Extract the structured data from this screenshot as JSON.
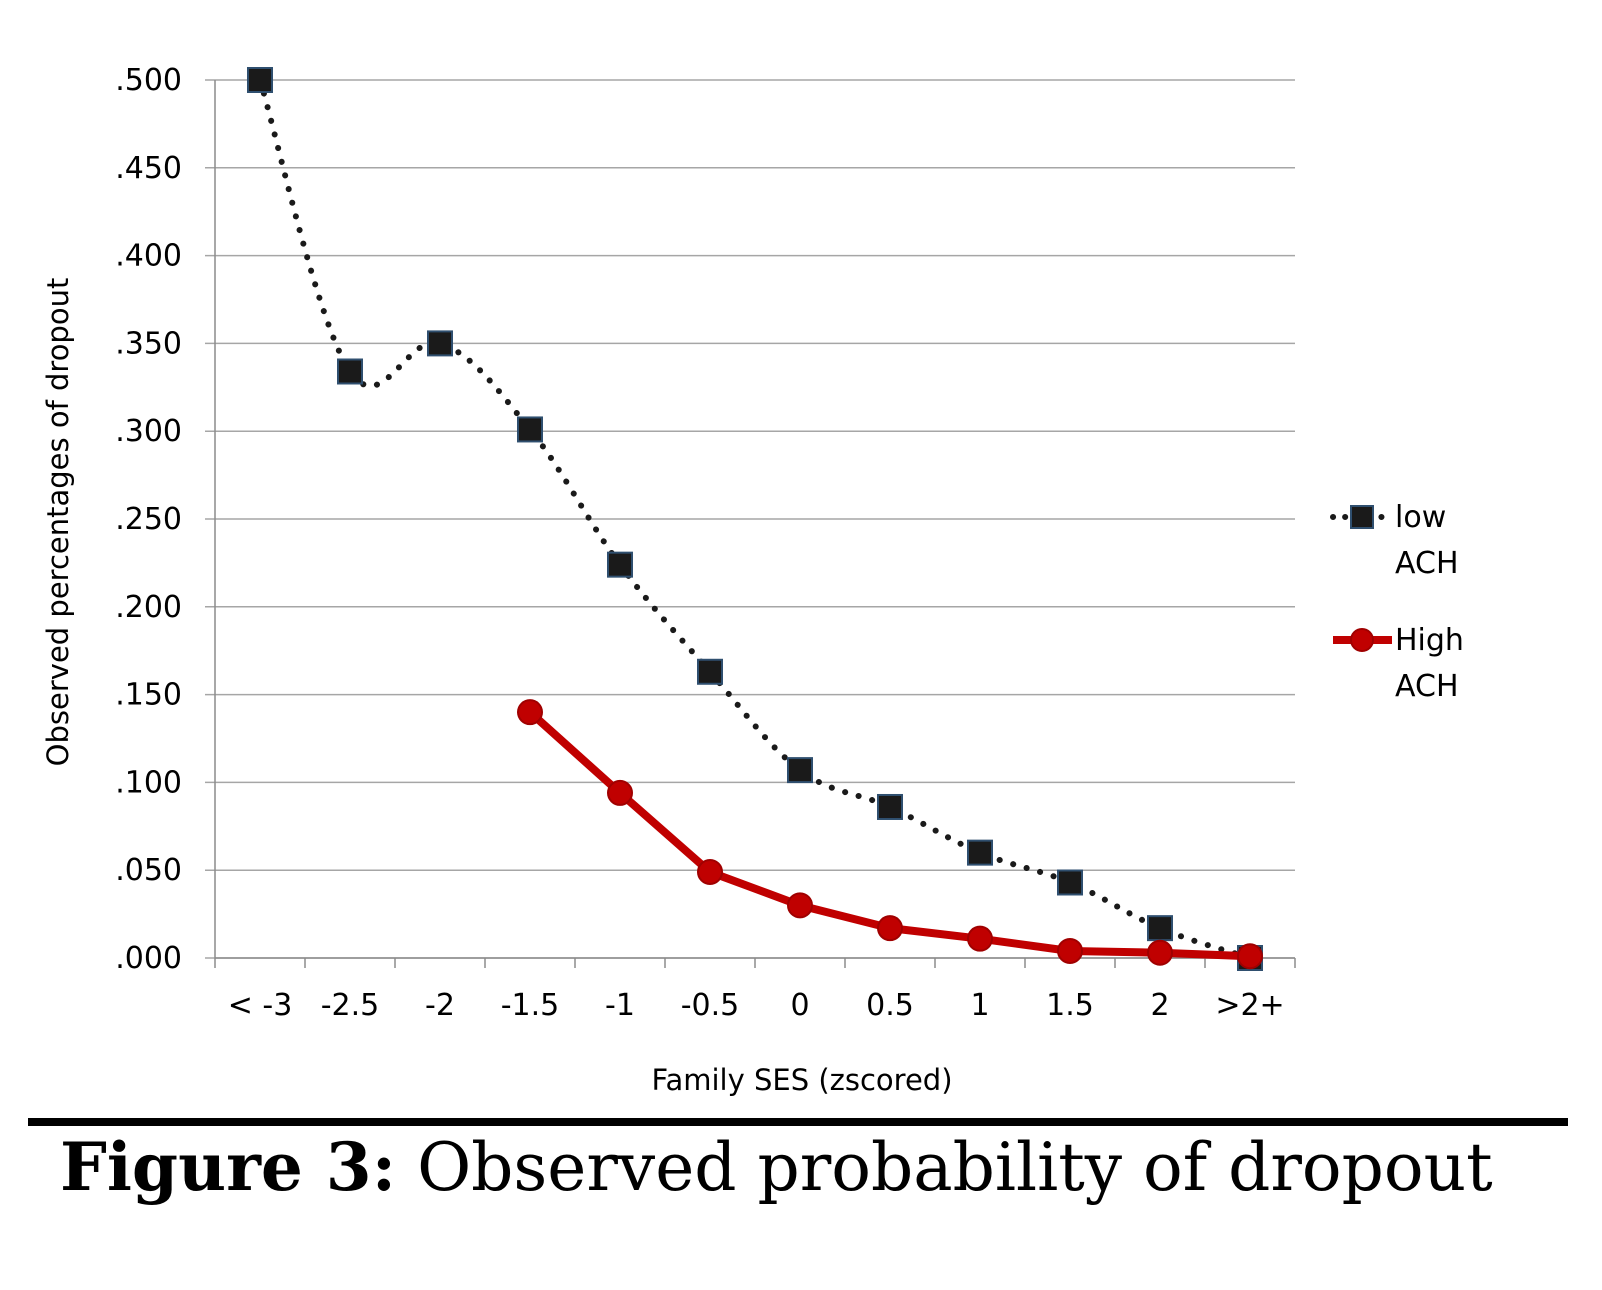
{
  "chart_data": {
    "type": "line",
    "categories": [
      "< -3",
      "-2.5",
      "-2",
      "-1.5",
      "-1",
      "-0.5",
      "0",
      "0.5",
      "1",
      "1.5",
      "2",
      ">2+"
    ],
    "series": [
      {
        "name_lines": [
          "low",
          "ACH"
        ],
        "values": [
          0.5,
          0.334,
          0.35,
          0.301,
          0.224,
          0.163,
          0.107,
          0.086,
          0.06,
          0.043,
          0.017,
          0.0
        ],
        "color": "#1a1a1a",
        "marker": "square",
        "line_style": "dotted"
      },
      {
        "name_lines": [
          "High",
          "ACH"
        ],
        "values": [
          null,
          null,
          null,
          0.14,
          0.094,
          0.049,
          0.03,
          0.017,
          0.011,
          0.004,
          0.003,
          0.001
        ],
        "color": "#c00000",
        "marker": "circle",
        "line_style": "solid"
      }
    ],
    "yticks": [
      ".000",
      ".050",
      ".100",
      ".150",
      ".200",
      ".250",
      ".300",
      ".350",
      ".400",
      ".450",
      ".500"
    ],
    "ylim": [
      0,
      0.5
    ],
    "xlabel": "Family SES (zscored)",
    "ylabel": "Observed percentages of dropout",
    "grid": "horizontal",
    "legend_position": "right"
  },
  "caption": {
    "label": "Figure 3:",
    "text": " Observed probability of dropout"
  }
}
